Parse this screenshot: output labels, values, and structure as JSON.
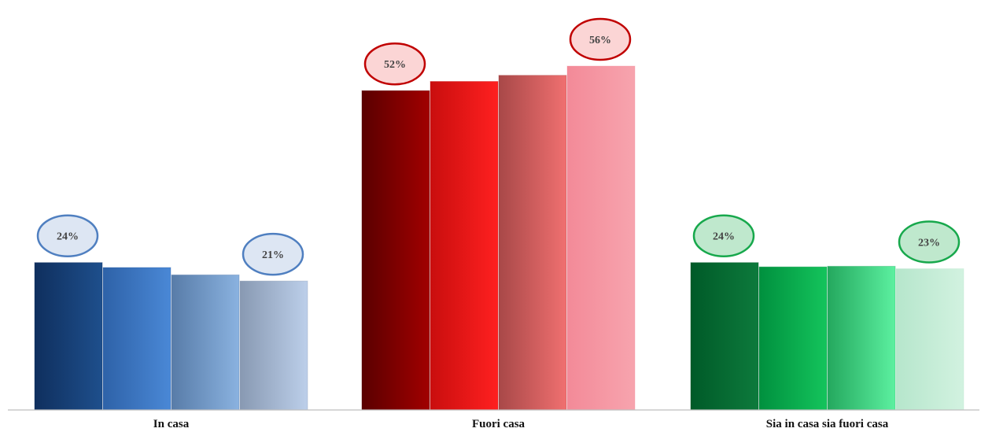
{
  "chart_data": {
    "type": "bar",
    "categories": [
      "In casa",
      "Fuori casa",
      "Sia in casa sia fuori casa"
    ],
    "groups": [
      {
        "category": "In casa",
        "values": [
          24,
          23.2,
          22,
          21
        ],
        "labels": [
          {
            "index": 0,
            "text": "24%"
          },
          {
            "index": 3,
            "text": "21%"
          }
        ],
        "colors": [
          [
            "#0f2f5e",
            "#1e4f8c"
          ],
          [
            "#2e62a8",
            "#4a88d6"
          ],
          [
            "#587ca8",
            "#8ab2e0"
          ],
          [
            "#8899b2",
            "#bccfea"
          ]
        ],
        "bubble_fill": "#dde6f3",
        "bubble_stroke": "#4f7fc0"
      },
      {
        "category": "Fuori casa",
        "values": [
          52,
          53.5,
          54.5,
          56
        ],
        "labels": [
          {
            "index": 0,
            "text": "52%"
          },
          {
            "index": 3,
            "text": "56%"
          }
        ],
        "colors": [
          [
            "#5a0000",
            "#a10000"
          ],
          [
            "#c90e0e",
            "#ff2020"
          ],
          [
            "#a84848",
            "#f07070"
          ],
          [
            "#f38a98",
            "#f7a4ae"
          ]
        ],
        "bubble_fill": "#fbd5d5",
        "bubble_stroke": "#c00000"
      },
      {
        "category": "Sia in casa sia fuori casa",
        "values": [
          24,
          23.3,
          23.4,
          23
        ],
        "labels": [
          {
            "index": 0,
            "text": "24%"
          },
          {
            "index": 3,
            "text": "23%"
          }
        ],
        "colors": [
          [
            "#005a28",
            "#0d7a3c"
          ],
          [
            "#00903e",
            "#14c45c"
          ],
          [
            "#24a85e",
            "#5cf0a0"
          ],
          [
            "#b6e6cc",
            "#d2f2e0"
          ]
        ],
        "bubble_fill": "#bfe8cd",
        "bubble_stroke": "#17a84c"
      }
    ],
    "ylim": [
      0,
      60
    ],
    "grid": false,
    "legend": "none"
  }
}
